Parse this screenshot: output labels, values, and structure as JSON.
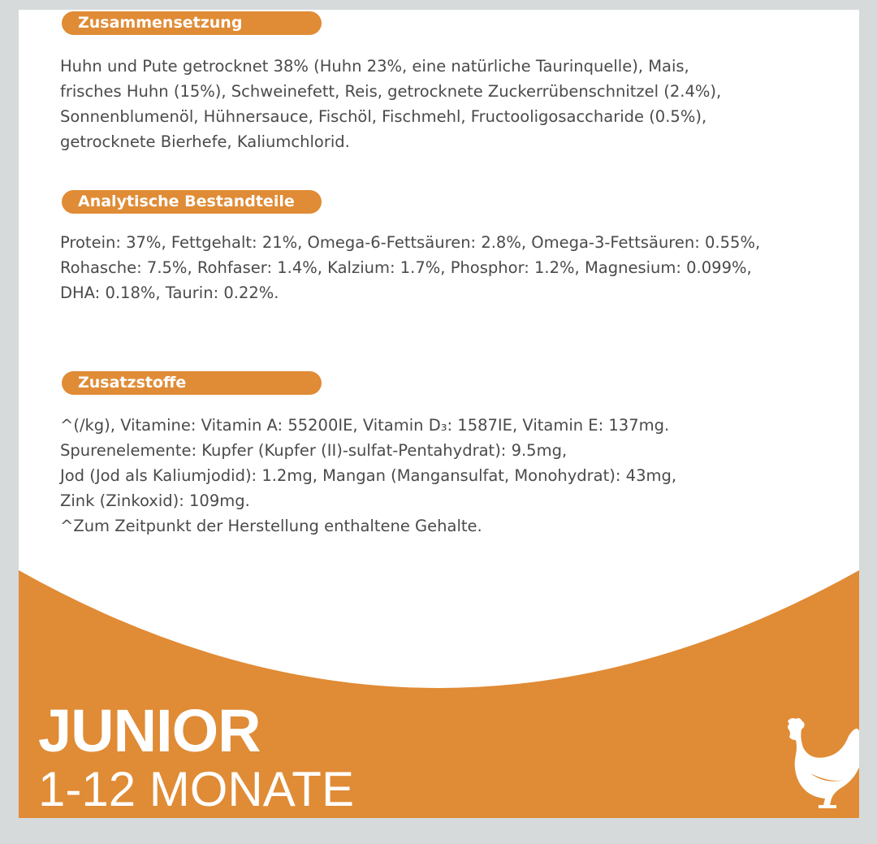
{
  "sections": [
    {
      "title": "Zusammensetzung",
      "lines": [
        "Huhn und Pute getrocknet 38% (Huhn 23%, eine natürliche Taurinquelle), Mais,",
        "frisches Huhn (15%), Schweinefett, Reis, getrocknete Zuckerrübenschnitzel (2.4%),",
        "Sonnenblumenöl, Hühnersauce, Fischöl, Fischmehl, Fructooligosaccharide (0.5%),",
        "getrocknete Bierhefe, Kaliumchlorid."
      ]
    },
    {
      "title": "Analytische Bestandteile",
      "lines": [
        "Protein: 37%, Fettgehalt: 21%, Omega-6-Fettsäuren: 2.8%, Omega-3-Fettsäuren: 0.55%,",
        "Rohasche: 7.5%, Rohfaser: 1.4%, Kalzium: 1.7%, Phosphor: 1.2%, Magnesium: 0.099%,",
        "DHA: 0.18%, Taurin: 0.22%."
      ]
    },
    {
      "title": "Zusatzstoffe",
      "lines": [
        "^(/kg), Vitamine: Vitamin A: 55200IE, Vitamin D₃: 1587IE, Vitamin E: 137mg.",
        "Spurenelemente: Kupfer (Kupfer (II)-sulfat-Pentahydrat): 9.5mg,",
        "Jod (Jod als Kaliumjodid): 1.2mg, Mangan (Mangansulfat, Monohydrat): 43mg,",
        "Zink (Zinkoxid): 109mg.",
        "^Zum Zeitpunkt der Herstellung enthaltene Gehalte."
      ]
    }
  ],
  "footer": {
    "title": "JUNIOR",
    "subtitle": "1-12 MONATE",
    "icon": "chicken-icon"
  },
  "colors": {
    "accent": "#e08b35",
    "text": "#4a4a4a",
    "background": "#d6dadb"
  }
}
